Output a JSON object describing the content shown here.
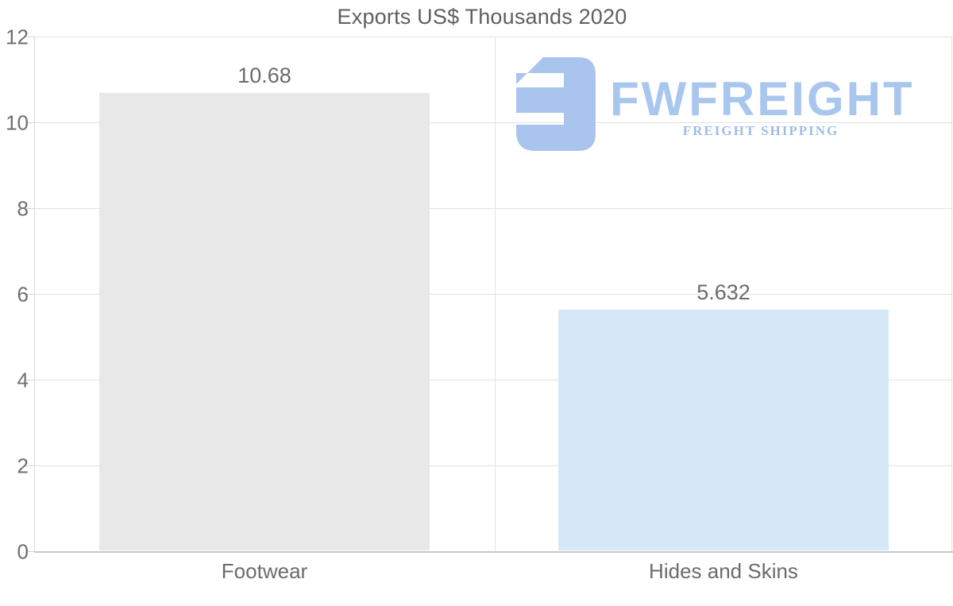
{
  "title": "Exports US$ Thousands 2020",
  "chart_data": {
    "type": "bar",
    "title": "Exports US$ Thousands 2020",
    "categories": [
      "Footwear",
      "Hides and Skins"
    ],
    "values": [
      10.68,
      5.632
    ],
    "value_labels": [
      "10.68",
      "5.632"
    ],
    "bar_colors": [
      "#e8e8e8",
      "#d6e7f8"
    ],
    "xlabel": "",
    "ylabel": "",
    "ylim": [
      0,
      12
    ],
    "yticks": [
      0,
      2,
      4,
      6,
      8,
      10,
      12
    ],
    "grid": true,
    "legend_position": "none",
    "label_color": "#6b6b6b",
    "gridline_color": "#e2e2e2"
  },
  "watermark": {
    "brand": "FWFREIGHT",
    "tagline": "FREIGHT SHIPPING",
    "logo_icon": "fwfreight-logomark-icon",
    "brand_color": "#a9c6ee",
    "tagline_color": "#a0bce9"
  }
}
